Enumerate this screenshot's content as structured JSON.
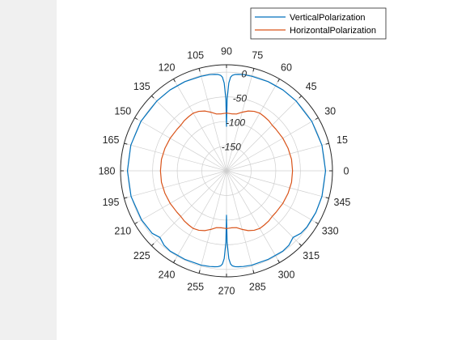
{
  "chart_data": {
    "type": "polar-line",
    "title": "",
    "theta_direction": "counterclockwise",
    "theta_zero_location": "right",
    "theta_ticks": [
      0,
      15,
      30,
      45,
      60,
      75,
      90,
      105,
      120,
      135,
      150,
      165,
      180,
      195,
      210,
      225,
      240,
      255,
      270,
      285,
      300,
      315,
      330,
      345
    ],
    "r_ticks": [
      -150,
      -100,
      -50,
      0
    ],
    "r_label_angle": 80,
    "rlim": [
      -200,
      15
    ],
    "grid": true,
    "legend": "top-right",
    "series": [
      {
        "name": "VerticalPolarization",
        "color": "#0072bd",
        "theta": [
          0,
          15,
          30,
          45,
          55,
          65,
          75,
          80,
          83,
          85,
          86.5,
          87.5,
          88.5,
          89.5,
          90,
          90.5,
          91.5,
          92.5,
          93.5,
          95,
          97,
          100,
          105,
          115,
          125,
          135,
          150,
          165,
          180,
          195,
          210,
          220,
          225,
          230,
          235,
          245,
          255,
          260,
          263,
          265,
          266.5,
          267.5,
          268.5,
          269.5,
          270,
          270.5,
          271.5,
          272.5,
          273.5,
          275,
          277,
          280,
          285,
          295,
          305,
          310,
          315,
          320,
          325,
          335,
          345,
          360
        ],
        "r": [
          1,
          0.5,
          0,
          0,
          0,
          -0.5,
          -1.5,
          -2,
          -3,
          -4,
          -6,
          -10,
          -22,
          -55,
          -110,
          -55,
          -22,
          -10,
          -6,
          -4,
          -3,
          -2,
          -1.5,
          -0.5,
          0,
          0,
          0.5,
          1,
          1,
          0.5,
          -1,
          -3,
          -9,
          -3,
          -1,
          -1.5,
          -2,
          -3,
          -4,
          -5,
          -7,
          -11,
          -22,
          -55,
          -110,
          -55,
          -22,
          -11,
          -7,
          -5,
          -4,
          -3,
          -2,
          -1.5,
          -1,
          -3,
          -9,
          -3,
          -1,
          0,
          0.5,
          1
        ]
      },
      {
        "name": "HorizontalPolarization",
        "color": "#d95319",
        "theta": [
          0,
          10,
          20,
          30,
          40,
          45,
          50,
          55,
          60,
          65,
          70,
          75,
          80,
          85,
          90,
          95,
          100,
          105,
          110,
          115,
          120,
          125,
          130,
          135,
          140,
          150,
          160,
          170,
          180,
          190,
          200,
          210,
          220,
          225,
          230,
          235,
          240,
          245,
          250,
          255,
          260,
          265,
          270,
          275,
          280,
          285,
          290,
          295,
          300,
          305,
          310,
          315,
          320,
          330,
          340,
          350,
          360
        ],
        "r": [
          -66,
          -66,
          -67,
          -68,
          -69,
          -69,
          -67,
          -66,
          -65,
          -67,
          -71,
          -77,
          -83,
          -84,
          -83,
          -84,
          -83,
          -77,
          -71,
          -67,
          -65,
          -66,
          -67,
          -69,
          -69,
          -68,
          -67,
          -66,
          -66,
          -66,
          -67,
          -68,
          -69,
          -69,
          -67,
          -66,
          -65,
          -67,
          -71,
          -77,
          -83,
          -84,
          -83,
          -84,
          -83,
          -77,
          -71,
          -67,
          -65,
          -66,
          -67,
          -69,
          -69,
          -68,
          -67,
          -66,
          -66
        ]
      }
    ]
  }
}
